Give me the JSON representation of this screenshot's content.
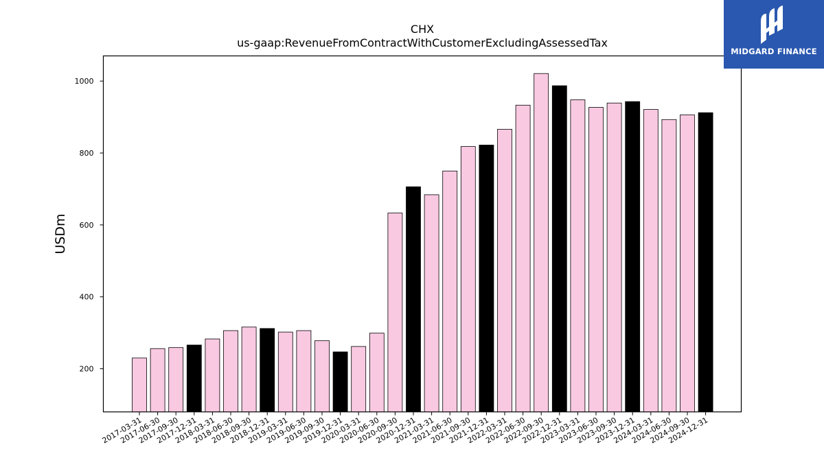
{
  "chart_data": {
    "type": "bar",
    "title": "CHX",
    "subtitle": "us-gaap:RevenueFromContractWithCustomerExcludingAssessedTax",
    "xlabel": "",
    "ylabel": "USDm",
    "ylim": [
      80,
      1070
    ],
    "yticks": [
      200,
      400,
      600,
      800,
      1000
    ],
    "grid": false,
    "colors": {
      "quarter": "#f9c9e1",
      "year_end": "#000000",
      "edge": "#000000"
    },
    "categories": [
      "2017-03-31",
      "2017-06-30",
      "2017-09-30",
      "2017-12-31",
      "2018-03-31",
      "2018-06-30",
      "2018-09-30",
      "2018-12-31",
      "2019-03-31",
      "2019-06-30",
      "2019-09-30",
      "2019-12-31",
      "2020-03-31",
      "2020-06-30",
      "2020-09-30",
      "2020-12-31",
      "2021-03-31",
      "2021-06-30",
      "2021-09-30",
      "2021-12-31",
      "2022-03-31",
      "2022-06-30",
      "2022-09-30",
      "2022-12-31",
      "2023-03-31",
      "2023-06-30",
      "2023-09-30",
      "2023-12-31",
      "2024-03-31",
      "2024-06-30",
      "2024-09-30",
      "2024-12-31"
    ],
    "values": [
      230,
      256,
      259,
      266,
      283,
      306,
      316,
      312,
      302,
      306,
      278,
      247,
      262,
      299,
      633,
      706,
      684,
      750,
      818,
      822,
      866,
      933,
      1021,
      987,
      948,
      927,
      939,
      943,
      921,
      893,
      906,
      912
    ],
    "highlight": [
      false,
      false,
      false,
      true,
      false,
      false,
      false,
      true,
      false,
      false,
      false,
      true,
      false,
      false,
      false,
      true,
      false,
      false,
      false,
      true,
      false,
      false,
      false,
      true,
      false,
      false,
      false,
      true,
      false,
      false,
      false,
      true
    ]
  },
  "logo": {
    "text": "MIDGARD FINANCE",
    "icon": "midgard-logo-icon"
  }
}
